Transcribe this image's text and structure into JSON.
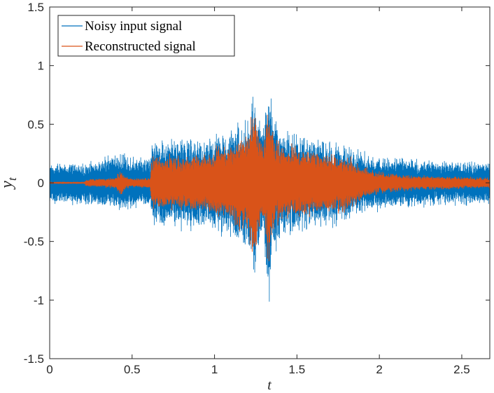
{
  "chart_data": {
    "type": "line",
    "title": "",
    "xlabel": "t",
    "ylabel_base": "y",
    "ylabel_sub": "t",
    "xlim": [
      0,
      2.67
    ],
    "ylim": [
      -1.5,
      1.5
    ],
    "x_ticks": [
      {
        "value": 0,
        "label": "0"
      },
      {
        "value": 0.5,
        "label": "0.5"
      },
      {
        "value": 1,
        "label": "1"
      },
      {
        "value": 1.5,
        "label": "1.5"
      },
      {
        "value": 2,
        "label": "2"
      },
      {
        "value": 2.5,
        "label": "2.5"
      }
    ],
    "y_ticks": [
      {
        "value": 1.5,
        "label": "1.5"
      },
      {
        "value": 1,
        "label": "1"
      },
      {
        "value": 0.5,
        "label": "0.5"
      },
      {
        "value": 0,
        "label": "0"
      },
      {
        "value": -0.5,
        "label": "-0.5"
      },
      {
        "value": -1,
        "label": "-1"
      },
      {
        "value": -1.5,
        "label": "-1.5"
      }
    ],
    "grid": false,
    "legend_position": "top-left",
    "series": [
      {
        "name": "Noisy input signal",
        "color": "#0072BD",
        "envelope_t": [
          0,
          0.22,
          0.3,
          0.42,
          0.45,
          0.48,
          0.55,
          0.61,
          0.62,
          0.8,
          1.0,
          1.01,
          1.1,
          1.2,
          1.24,
          1.27,
          1.3,
          1.33,
          1.35,
          1.4,
          1.5,
          1.6,
          1.7,
          1.8,
          1.9,
          2.0,
          2.2,
          2.4,
          2.6,
          2.67
        ],
        "envelope_upper": [
          0.18,
          0.18,
          0.22,
          0.26,
          0.28,
          0.24,
          0.22,
          0.23,
          0.38,
          0.4,
          0.4,
          0.45,
          0.48,
          0.6,
          0.88,
          0.6,
          0.55,
          1.04,
          0.7,
          0.5,
          0.45,
          0.42,
          0.38,
          0.35,
          0.28,
          0.24,
          0.22,
          0.2,
          0.2,
          0.2
        ],
        "envelope_lower": [
          -0.2,
          -0.2,
          -0.22,
          -0.25,
          -0.28,
          -0.24,
          -0.22,
          -0.23,
          -0.38,
          -0.42,
          -0.42,
          -0.45,
          -0.5,
          -0.62,
          -0.9,
          -0.6,
          -0.6,
          -1.12,
          -0.72,
          -0.5,
          -0.45,
          -0.42,
          -0.4,
          -0.35,
          -0.28,
          -0.25,
          -0.22,
          -0.2,
          -0.2,
          -0.2
        ]
      },
      {
        "name": "Reconstructed signal",
        "color": "#D95319",
        "envelope_t": [
          0,
          0.21,
          0.22,
          0.3,
          0.4,
          0.43,
          0.46,
          0.5,
          0.61,
          0.62,
          0.8,
          1.0,
          1.01,
          1.1,
          1.2,
          1.24,
          1.27,
          1.3,
          1.33,
          1.35,
          1.4,
          1.5,
          1.6,
          1.7,
          1.8,
          1.9,
          2.0,
          2.2,
          2.4,
          2.6,
          2.67
        ],
        "envelope_upper": [
          0.01,
          0.01,
          0.03,
          0.04,
          0.05,
          0.12,
          0.06,
          0.04,
          0.05,
          0.25,
          0.25,
          0.27,
          0.33,
          0.35,
          0.5,
          0.7,
          0.45,
          0.38,
          0.78,
          0.5,
          0.36,
          0.33,
          0.3,
          0.28,
          0.26,
          0.15,
          0.1,
          0.07,
          0.06,
          0.05,
          0.05
        ],
        "envelope_lower": [
          -0.01,
          -0.01,
          -0.03,
          -0.04,
          -0.05,
          -0.13,
          -0.06,
          -0.04,
          -0.05,
          -0.25,
          -0.25,
          -0.27,
          -0.33,
          -0.36,
          -0.52,
          -0.72,
          -0.45,
          -0.4,
          -0.8,
          -0.5,
          -0.36,
          -0.33,
          -0.3,
          -0.28,
          -0.26,
          -0.15,
          -0.1,
          -0.07,
          -0.06,
          -0.05,
          -0.05
        ]
      }
    ]
  }
}
